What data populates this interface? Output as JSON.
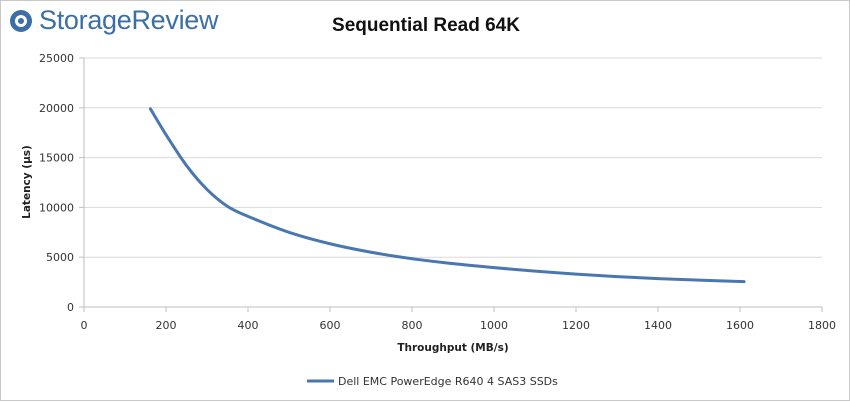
{
  "brand": {
    "name": "StorageReview",
    "icon": "storagereview-logo-icon"
  },
  "colors": {
    "series": "#4a77b0",
    "grid": "#d9d9d9",
    "axis": "#bfbfbf",
    "brand": "#3b6fa6"
  },
  "chart_data": {
    "type": "line",
    "title": "Sequential Read 64K",
    "xlabel": "Throughput (MB/s)",
    "ylabel": "Latency (µs)",
    "xlim": [
      0,
      1800
    ],
    "ylim": [
      0,
      25000
    ],
    "xticks": [
      0,
      200,
      400,
      600,
      800,
      1000,
      1200,
      1400,
      1600,
      1800
    ],
    "yticks": [
      0,
      5000,
      10000,
      15000,
      20000,
      25000
    ],
    "grid": true,
    "legend_position": "bottom",
    "series": [
      {
        "name": "Dell EMC PowerEdge R640 4 SAS3 SSDs",
        "x": [
          162,
          200,
          250,
          300,
          350,
          400,
          500,
          600,
          700,
          800,
          900,
          1000,
          1100,
          1200,
          1300,
          1400,
          1500,
          1610
        ],
        "y": [
          19900,
          17300,
          14200,
          11800,
          10100,
          9100,
          7500,
          6350,
          5500,
          4850,
          4350,
          3950,
          3600,
          3300,
          3050,
          2850,
          2700,
          2550
        ]
      }
    ]
  }
}
